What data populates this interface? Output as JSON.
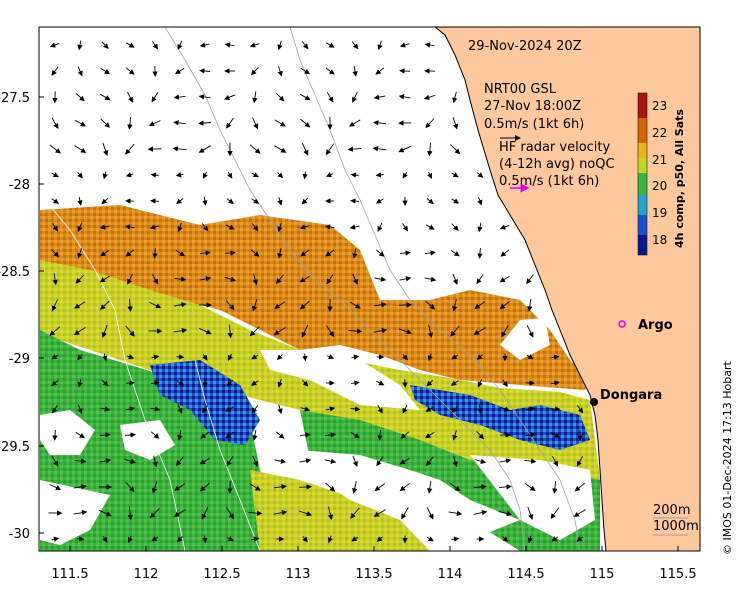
{
  "map": {
    "date_label": "29-Nov-2024 20Z",
    "model_label_line1": "NRT00 GSL",
    "model_label_line2": "27-Nov 18:00Z",
    "model_scale_label": "0.5m/s (1kt 6h)",
    "radar_label_line1": "HF radar velocity",
    "radar_label_line2": "(4-12h avg) noQC",
    "radar_scale_label": "0.5m/s (1kt 6h)",
    "place_argo": "Argo",
    "place_dongara": "Dongara",
    "depth_200": "200m",
    "depth_1000": "1000m",
    "credit": "© IMOS 01-Dec-2024 17:13 Hobart",
    "colorbar_title": "4h comp, p50, All Sats",
    "colorbar_ticks": [
      "23",
      "22",
      "21",
      "20",
      "19",
      "18"
    ],
    "x_ticks": [
      "111.5",
      "112",
      "112.5",
      "113",
      "113.5",
      "114",
      "114.5",
      "115",
      "115.5"
    ],
    "y_ticks": [
      "-27.5",
      "-28",
      "-28.5",
      "-29",
      "-29.5",
      "-30"
    ],
    "colors": {
      "land": "#fcc89c",
      "argo_marker": "#e000e0",
      "radar_arrow": "#e000e0",
      "sst_warm": "#d87a14",
      "sst_green": "#3cb43c",
      "sst_cold": "#0a1a8c"
    }
  }
}
